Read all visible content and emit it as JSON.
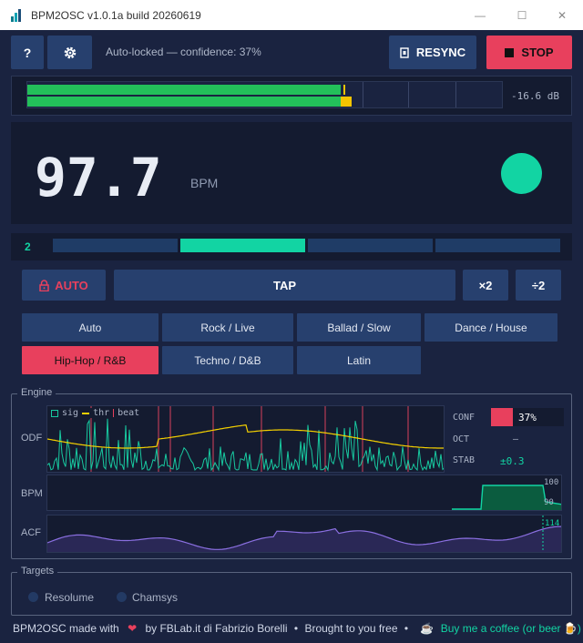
{
  "window": {
    "title": "BPM2OSC  v1.0.1a build 20260619",
    "minimize": "—",
    "maximize": "☐",
    "close": "✕"
  },
  "toolbar": {
    "help_label": "?",
    "settings_icon": "gear-icon",
    "status_text": "Auto-locked — confidence: 37%",
    "resync_label": "RESYNC",
    "stop_label": "STOP"
  },
  "meter": {
    "level_db": "-16.6 dB",
    "level_top": 0.66,
    "level_bottom": 0.66
  },
  "bpm": {
    "value": "97.7",
    "unit": "BPM"
  },
  "beat": {
    "current": "2",
    "total": 4,
    "active_index": 1
  },
  "controls": {
    "auto_label": "AUTO",
    "tap_label": "TAP",
    "double_label": "×2",
    "half_label": "÷2"
  },
  "genres": {
    "items": [
      "Auto",
      "Rock / Live",
      "Ballad / Slow",
      "Dance / House",
      "Hip-Hop / R&B",
      "Techno / D&B",
      "Latin"
    ],
    "selected": "Hip-Hop / R&B"
  },
  "engine": {
    "title": "Engine",
    "odf_label": "ODF",
    "bpm_label": "BPM",
    "acf_label": "ACF",
    "legend_sig": "sig",
    "legend_thr": "thr",
    "legend_beat": "beat",
    "conf_label": "CONF",
    "conf_value": "37%",
    "conf_fraction": 0.37,
    "oct_label": "OCT",
    "oct_value": "—",
    "stab_label": "STAB",
    "stab_value": "±0.3",
    "bpm_axis_top": "100",
    "bpm_axis_bottom": "90",
    "acf_marker": "114"
  },
  "targets": {
    "title": "Targets",
    "options": [
      "Resolume",
      "Chamsys"
    ]
  },
  "footer": {
    "made_with": "BPM2OSC made with",
    "heart": "❤",
    "by": "by FBLab.it di Fabrizio Borelli",
    "sep1": "•",
    "brought": "Brought to you free",
    "sep2": "•",
    "coffee": "Buy me a coffee (or beer 🍺)"
  },
  "colors": {
    "accent": "#12d4a3",
    "danger": "#e8405d",
    "button": "#27406e",
    "background": "#1a2340",
    "panel": "#141b30"
  }
}
